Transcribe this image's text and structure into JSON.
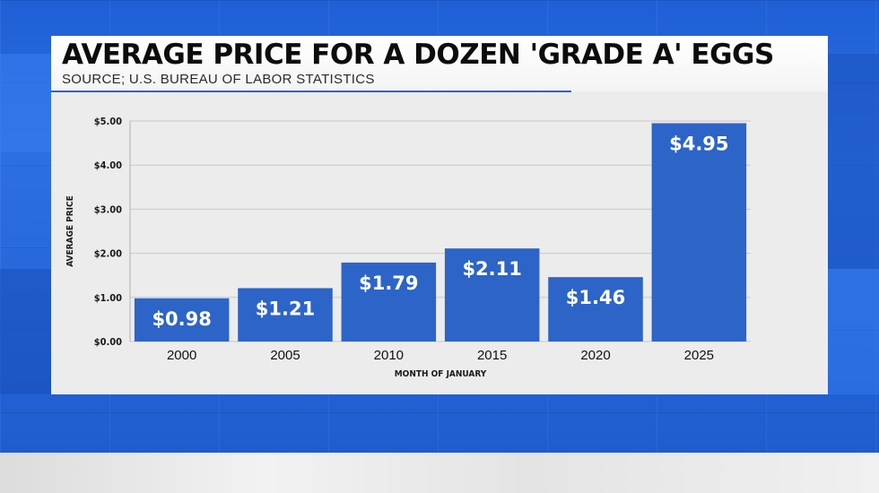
{
  "header": {
    "title": "AVERAGE PRICE FOR A DOZEN 'GRADE A' EGGS",
    "subtitle": "SOURCE; U.S. BUREAU OF LABOR STATISTICS"
  },
  "colors": {
    "bar": "#2d64c8",
    "background_blue": "#2466da",
    "gridline": "#c8c8c8",
    "bar_label": "#ffffff"
  },
  "chart_data": {
    "type": "bar",
    "title": "AVERAGE PRICE FOR A DOZEN 'GRADE A' EGGS",
    "subtitle": "SOURCE; U.S. BUREAU OF LABOR STATISTICS",
    "xlabel": "MONTH OF JANUARY",
    "ylabel": "AVERAGE PRICE",
    "categories": [
      "2000",
      "2005",
      "2010",
      "2015",
      "2020",
      "2025"
    ],
    "values": [
      0.98,
      1.21,
      1.79,
      2.11,
      1.46,
      4.95
    ],
    "data_labels": [
      "$0.98",
      "$1.21",
      "$1.79",
      "$2.11",
      "$1.46",
      "$4.95"
    ],
    "yticks": [
      "$0.00",
      "$1.00",
      "$2.00",
      "$3.00",
      "$4.00",
      "$5.00"
    ],
    "ylim": [
      0,
      5
    ],
    "grid": true,
    "legend": "none"
  }
}
